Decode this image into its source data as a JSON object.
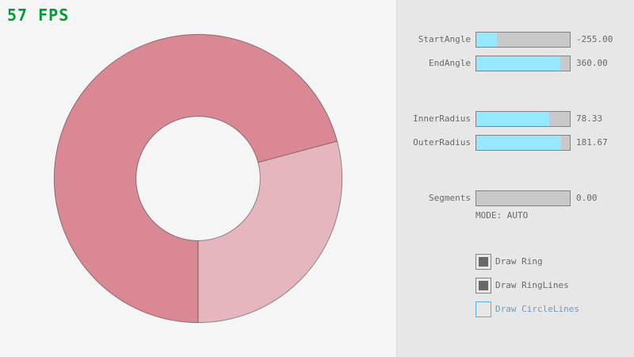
{
  "fps_counter": {
    "text": "57 FPS"
  },
  "ring": {
    "fill_color_single_pass": "#E6B6BE",
    "fill_color_double_pass": "#D98894",
    "outline_color": "rgba(0,0,0,0.4)"
  },
  "panel": {
    "sliders": [
      {
        "label": "StartAngle",
        "value": "-255.00",
        "fill_pct": 21.67
      },
      {
        "label": "EndAngle",
        "value": "360.00",
        "fill_pct": 90.0
      },
      {
        "label": "InnerRadius",
        "value": "78.33",
        "fill_pct": 78.33
      },
      {
        "label": "OuterRadius",
        "value": "181.67",
        "fill_pct": 90.83
      },
      {
        "label": "Segments",
        "value": "0.00",
        "fill_pct": 0
      }
    ],
    "mode_label": "MODE: AUTO",
    "checkboxes": [
      {
        "label": "Draw Ring",
        "checked": true
      },
      {
        "label": "Draw RingLines",
        "checked": true
      },
      {
        "label": "Draw CircleLines",
        "checked": false
      }
    ]
  },
  "colors": {
    "fps_green": "#009E2F",
    "slider_fill": "#97E8FF",
    "slider_track": "#C9C9C9",
    "border_normal": "#838383",
    "border_focused": "#5BB2D9",
    "text_normal": "#686868",
    "text_focused": "#6C9BBC",
    "panel_bg": "#E7E7E7",
    "canvas_bg": "#F5F5F5"
  }
}
